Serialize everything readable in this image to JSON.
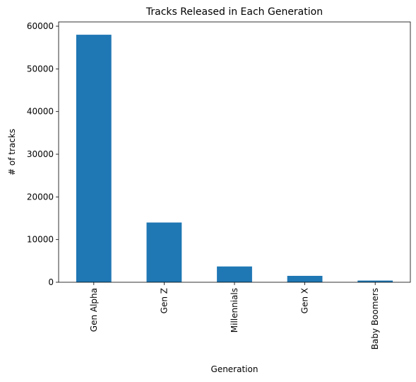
{
  "chart_data": {
    "type": "bar",
    "title": "Tracks Released in Each Generation",
    "xlabel": "Generation",
    "ylabel": "# of tracks",
    "categories": [
      "Gen Alpha",
      "Gen Z",
      "Millennials",
      "Gen X",
      "Baby Boomers"
    ],
    "values": [
      58000,
      14000,
      3700,
      1500,
      400
    ],
    "ylim": [
      0,
      61000
    ],
    "yticks": [
      "0",
      "10000",
      "20000",
      "30000",
      "40000",
      "50000",
      "60000"
    ],
    "grid": false,
    "legend": "none",
    "bar_color": "#1f77b4"
  }
}
